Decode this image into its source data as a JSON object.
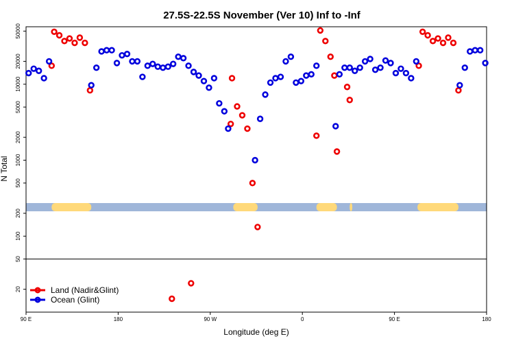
{
  "chart_data": {
    "type": "scatter",
    "title": "27.5S-22.5S November (Ver 10)   Inf to -Inf",
    "xlabel": "Longitude (deg E)",
    "ylabel": "N Total",
    "y_scale": "log",
    "ylim": [
      10,
      80000
    ],
    "xlim": [
      0,
      360
    ],
    "x_ticks": [
      {
        "pos": 0,
        "label": "90 E"
      },
      {
        "pos": 72,
        "label": "180"
      },
      {
        "pos": 144,
        "label": "90 W"
      },
      {
        "pos": 216,
        "label": "0"
      },
      {
        "pos": 288,
        "label": "90 E"
      },
      {
        "pos": 360,
        "label": "180"
      }
    ],
    "y_ticks": [
      20,
      50,
      100,
      200,
      500,
      1000,
      2000,
      5000,
      10000,
      20000,
      50000
    ],
    "reference_line": 50,
    "colors": {
      "land": "#ee0000",
      "ocean": "#0000dd",
      "band_ocean": "#9fb6d9",
      "band_land": "#ffd97a"
    },
    "land_bands": [
      [
        20,
        51
      ],
      [
        162,
        181
      ],
      [
        227,
        243
      ],
      [
        253,
        255
      ],
      [
        306,
        338
      ]
    ],
    "legend": {
      "position": "bottom-left"
    },
    "series": [
      {
        "name": "Land (Nadir&Glint)",
        "color": "#ee0000",
        "points": [
          [
            20,
            17500
          ],
          [
            22,
            49000
          ],
          [
            26,
            44000
          ],
          [
            30,
            37000
          ],
          [
            34,
            40000
          ],
          [
            38,
            35000
          ],
          [
            42,
            41000
          ],
          [
            46,
            35000
          ],
          [
            50,
            8300
          ],
          [
            114,
            15
          ],
          [
            129,
            24
          ],
          [
            161,
            12000
          ],
          [
            160,
            3000
          ],
          [
            165,
            5100
          ],
          [
            169,
            3900
          ],
          [
            173,
            2600
          ],
          [
            177,
            500
          ],
          [
            181,
            132
          ],
          [
            227,
            2100
          ],
          [
            230,
            51000
          ],
          [
            234,
            37000
          ],
          [
            238,
            23000
          ],
          [
            241,
            13000
          ],
          [
            243,
            1300
          ],
          [
            251,
            9200
          ],
          [
            253,
            6200
          ],
          [
            307,
            17500
          ],
          [
            310,
            49000
          ],
          [
            314,
            44000
          ],
          [
            318,
            37000
          ],
          [
            322,
            40000
          ],
          [
            326,
            35000
          ],
          [
            330,
            41000
          ],
          [
            334,
            35000
          ],
          [
            338,
            8300
          ]
        ]
      },
      {
        "name": "Ocean (Glint)",
        "color": "#0000dd",
        "points": [
          [
            2,
            14000
          ],
          [
            6,
            16000
          ],
          [
            10,
            15000
          ],
          [
            14,
            12000
          ],
          [
            18,
            20000
          ],
          [
            51,
            9700
          ],
          [
            55,
            16500
          ],
          [
            59,
            27000
          ],
          [
            63,
            28000
          ],
          [
            67,
            28000
          ],
          [
            71,
            19000
          ],
          [
            75,
            24000
          ],
          [
            79,
            25000
          ],
          [
            83,
            20000
          ],
          [
            87,
            20000
          ],
          [
            91,
            12500
          ],
          [
            95,
            17500
          ],
          [
            99,
            18500
          ],
          [
            103,
            17000
          ],
          [
            107,
            16500
          ],
          [
            111,
            17000
          ],
          [
            115,
            18500
          ],
          [
            119,
            23000
          ],
          [
            123,
            22000
          ],
          [
            127,
            17500
          ],
          [
            131,
            14500
          ],
          [
            135,
            13000
          ],
          [
            139,
            11000
          ],
          [
            143,
            9000
          ],
          [
            147,
            12000
          ],
          [
            151,
            5600
          ],
          [
            155,
            4400
          ],
          [
            158,
            2600
          ],
          [
            179,
            1000
          ],
          [
            183,
            3500
          ],
          [
            187,
            7300
          ],
          [
            191,
            10500
          ],
          [
            195,
            12000
          ],
          [
            199,
            12500
          ],
          [
            203,
            20000
          ],
          [
            207,
            23000
          ],
          [
            211,
            10500
          ],
          [
            215,
            11000
          ],
          [
            219,
            13000
          ],
          [
            223,
            13500
          ],
          [
            227,
            17500
          ],
          [
            242,
            2800
          ],
          [
            245,
            13500
          ],
          [
            249,
            16500
          ],
          [
            253,
            16500
          ],
          [
            257,
            15000
          ],
          [
            261,
            16500
          ],
          [
            265,
            20000
          ],
          [
            269,
            21500
          ],
          [
            273,
            15500
          ],
          [
            277,
            16500
          ],
          [
            281,
            20500
          ],
          [
            285,
            19000
          ],
          [
            289,
            14000
          ],
          [
            293,
            16000
          ],
          [
            297,
            14000
          ],
          [
            301,
            12000
          ],
          [
            305,
            20000
          ],
          [
            339,
            9700
          ],
          [
            343,
            16500
          ],
          [
            347,
            27000
          ],
          [
            351,
            28000
          ],
          [
            355,
            28000
          ],
          [
            359,
            19000
          ]
        ]
      }
    ]
  }
}
